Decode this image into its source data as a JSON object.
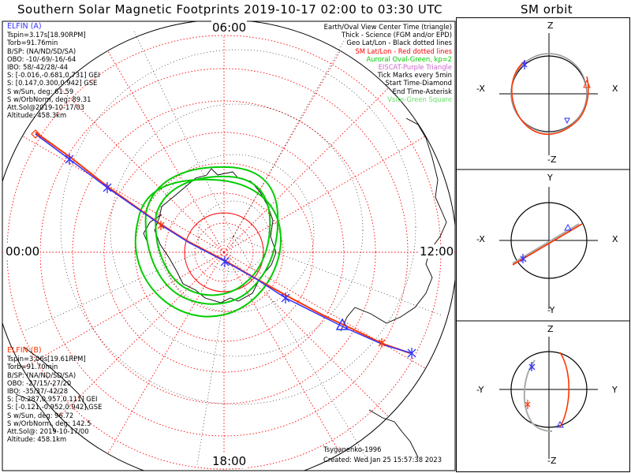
{
  "title": "Southern Solar Magnetic Footprints 2019-10-17 02:00 to 03:30 UTC",
  "sm_orbit_title": "SM orbit",
  "clock_labels": {
    "top": "06:00",
    "left": "00:00",
    "right": "12:00",
    "bottom": "18:00"
  },
  "elfin_a": {
    "name": "ELFIN (A)",
    "lines": [
      "Tspin=3.17s[18.90RPM]",
      "Torb=91.76min",
      "B/SP: (NA/ND/SD/SA)",
      "OBO: -10/-69/-16/-64",
      "IBO: 58/-42/28/-44",
      "S: [-0.016,-0.681,0.731] GEI",
      "S: [0.147,0.300,0.942] GSE",
      "S w/Sun, deg: 61.59",
      "S w/OrbNorm, deg: 89.31",
      "Att.Sol@2019-10-17/03",
      "Altitude: 458.3km"
    ]
  },
  "elfin_b": {
    "name": "ELFIN (B)",
    "lines": [
      "Tspin=3.06s[19.61RPM]",
      "Torb=91.70min",
      "B/SP: (NA/ND/SD/SA)",
      "OBO: -27/15/-27/20",
      "IBO: -35/37/-42/28",
      "S: [-0.287,0.957,0.111] GEI",
      "S: [-0.121,-0.952,0.942] GSE",
      "S w/Sun, deg: 96.72",
      "S w/OrbNorm, deg: 142.5",
      "Att.Sol@: 2019-10-17/00",
      "Altitude: 458.1km"
    ]
  },
  "legend": [
    {
      "text": "Earth/Oval View Center Time (triangle)",
      "color": "#000000"
    },
    {
      "text": "Thick - Science (FGM and/or EPD)",
      "color": "#000000"
    },
    {
      "text": "Geo Lat/Lon - Black dotted lines",
      "color": "#000000"
    },
    {
      "text": "SM Lat/Lon - Red dotted lines",
      "color": "#ff0000"
    },
    {
      "text": "Auroral Oval-Green, kp=2",
      "color": "#00cc00"
    },
    {
      "text": "EISCAT-Purple Triangle",
      "color": "#cc66cc"
    },
    {
      "text": "Tick Marks every 5min",
      "color": "#000000"
    },
    {
      "text": "Start Time-Diamond",
      "color": "#000000"
    },
    {
      "text": "End Time-Asterisk",
      "color": "#000000"
    },
    {
      "text": "Vsite-Green Square",
      "color": "#66dd66"
    }
  ],
  "model": "Tsyganenko-1996",
  "created": "Created: Wed Jan 25 15:57:38 2023",
  "orbit_panels": [
    {
      "top": "Z",
      "bottom": "-Z",
      "left": "-X",
      "right": "X"
    },
    {
      "top": "Y",
      "bottom": "-Y",
      "left": "-X",
      "right": "X"
    },
    {
      "top": "Z",
      "bottom": "-Z",
      "left": "-Y",
      "right": "Y"
    }
  ],
  "colors": {
    "elfin_a": "#3333ff",
    "elfin_b": "#ff3300",
    "sm_grid": "#ff0000",
    "oval": "#00cc00",
    "geo_grid": "#000000"
  }
}
